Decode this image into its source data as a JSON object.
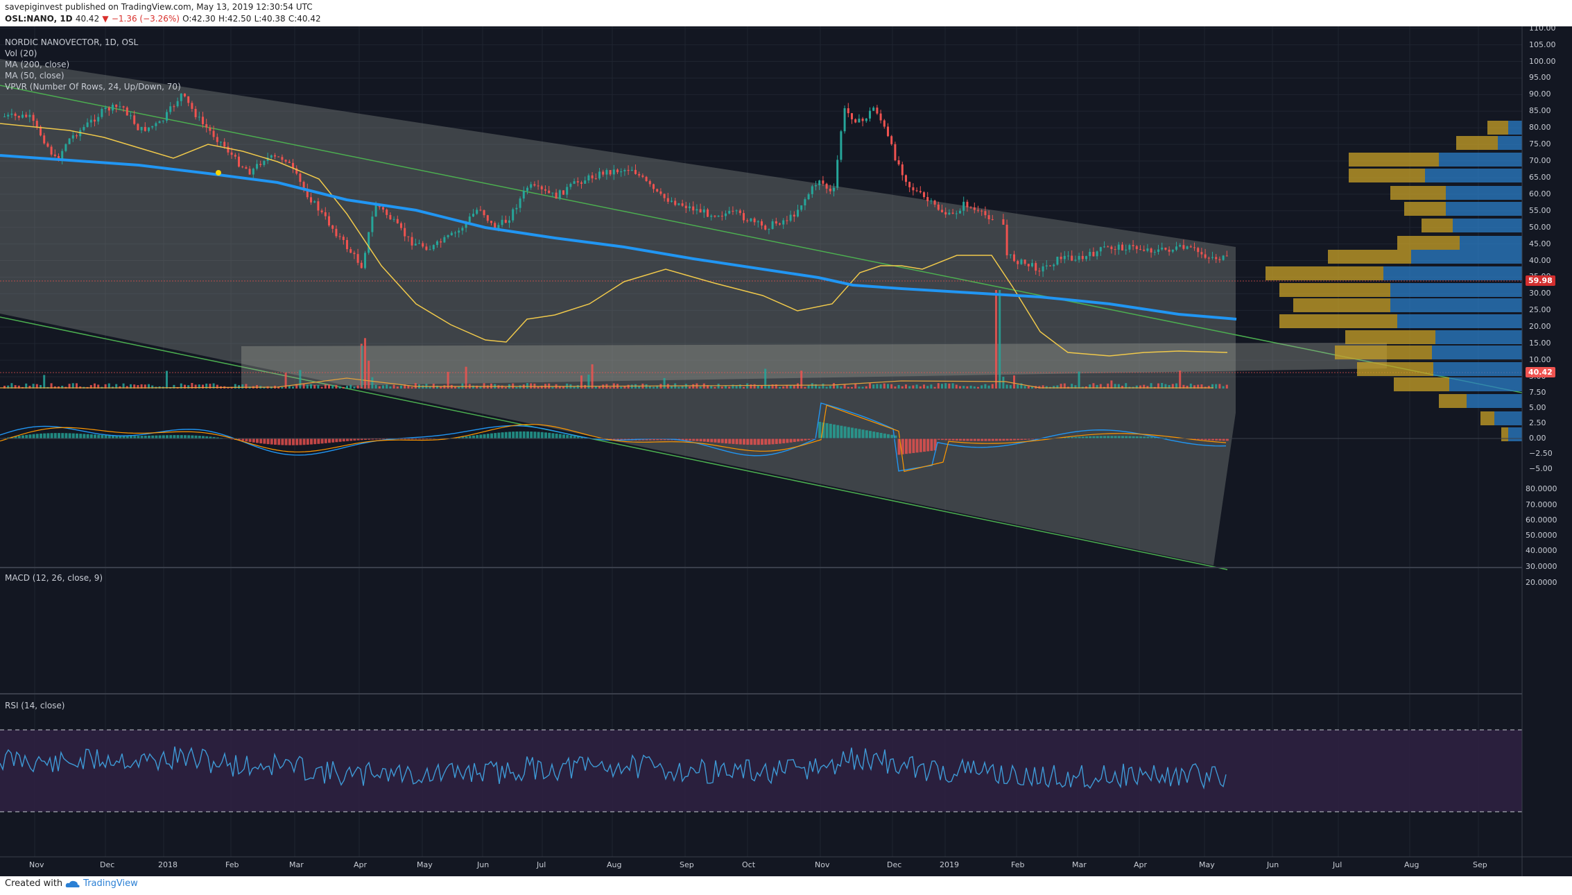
{
  "header": {
    "author": "savepiginvest",
    "published_text": " published on TradingView.com, May 13, 2019 12:30:54 UTC",
    "symbol": "OSL:NANO, 1D",
    "last": "40.42",
    "change_arrow": "▼",
    "change": "−1.36 (−3.26%)",
    "o": "O:42.30",
    "h": "H:42.50",
    "l": "L:40.38",
    "c": "C:40.42"
  },
  "main_pane": {
    "title": "NORDIC NANOVECTOR, 1D, OSL",
    "indicators": [
      "Vol (20)",
      "MA (200, close)",
      "MA (50, close)",
      "VPVR (Number Of Rows, 24, Up/Down, 70)"
    ],
    "price_ticks": [
      "110.00",
      "105.00",
      "100.00",
      "95.00",
      "90.00",
      "85.00",
      "80.00",
      "75.00",
      "70.00",
      "65.00",
      "60.00",
      "55.00",
      "50.00",
      "45.00",
      "40.00",
      "35.00",
      "30.00",
      "25.00",
      "20.00",
      "15.00",
      "10.00",
      "5.00"
    ],
    "last_price_tag": "40.42",
    "level_tag": "59.98",
    "colors": {
      "up": "#26a69a",
      "down": "#ef5350",
      "ma200": "#2196f3",
      "ma50": "#f0c94b",
      "channel": "#4caf50",
      "vpvr_up": "#2b7ec7",
      "vpvr_down": "#c9a227"
    }
  },
  "macd_pane": {
    "title": "MACD (12, 26, close, 9)",
    "ticks": [
      "7.50",
      "5.00",
      "2.50",
      "0.00",
      "−2.50",
      "−5.00"
    ]
  },
  "rsi_pane": {
    "title": "RSI (14, close)",
    "ticks": [
      "80.0000",
      "70.0000",
      "60.0000",
      "50.0000",
      "40.0000",
      "30.0000",
      "20.0000"
    ]
  },
  "time_axis": {
    "labels": [
      "Nov",
      "Dec",
      "2018",
      "Feb",
      "Mar",
      "Apr",
      "May",
      "Jun",
      "Jul",
      "Aug",
      "Sep",
      "Oct",
      "Nov",
      "Dec",
      "2019",
      "Feb",
      "Mar",
      "Apr",
      "May",
      "Jun",
      "Jul",
      "Aug",
      "Sep"
    ]
  },
  "footer": {
    "created": "Created with",
    "brand": "TradingView",
    "logo_icon": "tradingview-cloud-icon"
  }
}
